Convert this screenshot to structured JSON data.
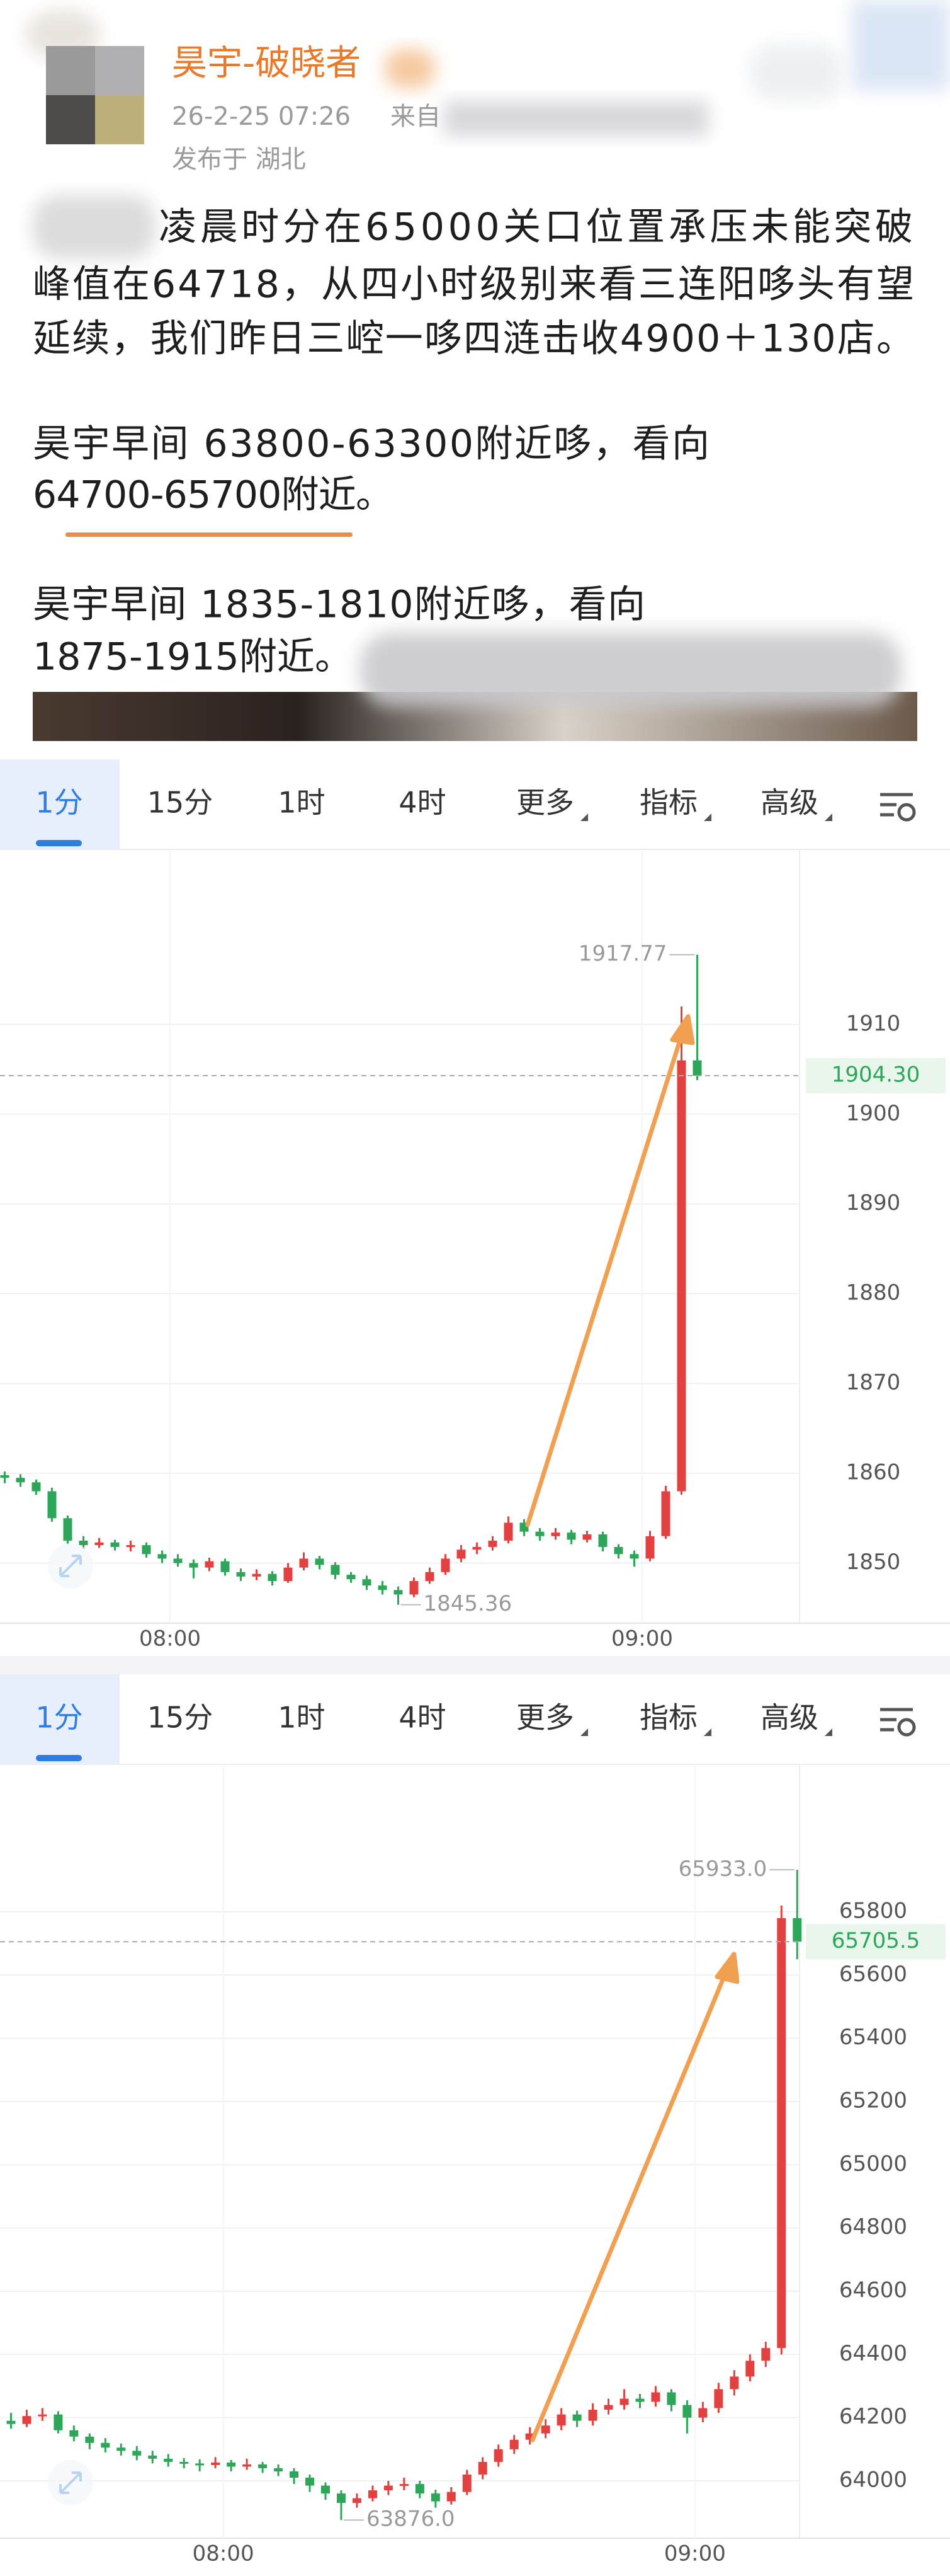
{
  "post": {
    "author": "昊宇-破晓者",
    "time": "26-2-25 07:26",
    "source": "来自",
    "location": "发布于 湖北",
    "paragraphs": [
      [
        "凌晨时分在65000关口位置承压未能突破",
        "峰值在64718，从四小时级别来看三连阳哆头有望",
        "延续，我们昨日三崆一哆四涟击收4900＋130店。"
      ],
      [
        "昊宇早间  63800-63300附近哆，看向",
        "64700-65700附近。"
      ],
      [
        "昊宇早间  1835-1810附近哆，看向",
        "1875-1915附近。"
      ]
    ]
  },
  "chart_data": [
    {
      "type": "candlestick",
      "periods": [
        "1分",
        "15分",
        "1时",
        "4时"
      ],
      "menus": [
        "更多",
        "指标",
        "高级"
      ],
      "active_period": 0,
      "colors": {
        "up": "#e3413f",
        "down": "#2ea65a"
      },
      "xlim": [
        458.4,
        560
      ],
      "xticks": [
        {
          "value": 480,
          "label": "08:00"
        },
        {
          "value": 540,
          "label": "09:00"
        }
      ],
      "ylim": [
        1843.3,
        1929.5
      ],
      "yticks": [
        1850,
        1860,
        1870,
        1880,
        1890,
        1900,
        1910
      ],
      "grid": true,
      "high_label": "1917.77",
      "low_label": "1845.36",
      "last_label": "1904.30",
      "x": [
        459,
        461,
        463,
        465,
        467,
        469,
        471,
        473,
        475,
        477,
        479,
        481,
        483,
        485,
        487,
        489,
        491,
        493,
        495,
        497,
        499,
        501,
        503,
        505,
        507,
        509,
        511,
        513,
        515,
        517,
        519,
        521,
        523,
        525,
        527,
        529,
        531,
        533,
        535,
        537,
        539,
        541,
        543,
        545,
        547
      ],
      "ohlc": [
        [
          1859.8,
          1860.2,
          1858.9,
          1859.5
        ],
        [
          1859.5,
          1859.9,
          1858.5,
          1859.0
        ],
        [
          1859.0,
          1859.3,
          1857.6,
          1858.0
        ],
        [
          1858.0,
          1858.4,
          1854.6,
          1855.0
        ],
        [
          1855.0,
          1855.3,
          1852.1,
          1852.5
        ],
        [
          1852.5,
          1853.0,
          1851.6,
          1852.0
        ],
        [
          1852.0,
          1852.8,
          1851.7,
          1852.3
        ],
        [
          1852.3,
          1852.6,
          1851.4,
          1851.8
        ],
        [
          1851.8,
          1852.5,
          1851.3,
          1852.0
        ],
        [
          1852.0,
          1852.3,
          1850.6,
          1851.0
        ],
        [
          1851.0,
          1851.4,
          1850.0,
          1850.5
        ],
        [
          1850.5,
          1851.0,
          1849.6,
          1850.0
        ],
        [
          1850.0,
          1850.4,
          1848.3,
          1849.5
        ],
        [
          1849.5,
          1850.6,
          1849.1,
          1850.2
        ],
        [
          1850.2,
          1850.5,
          1848.6,
          1849.0
        ],
        [
          1849.0,
          1849.4,
          1848.0,
          1848.5
        ],
        [
          1848.5,
          1849.3,
          1848.1,
          1848.8
        ],
        [
          1848.8,
          1849.1,
          1847.5,
          1848.0
        ],
        [
          1848.0,
          1850.0,
          1847.8,
          1849.5
        ],
        [
          1849.5,
          1851.2,
          1849.2,
          1850.5
        ],
        [
          1850.5,
          1850.8,
          1849.3,
          1849.8
        ],
        [
          1849.8,
          1850.1,
          1848.2,
          1848.7
        ],
        [
          1848.7,
          1849.0,
          1847.8,
          1848.2
        ],
        [
          1848.2,
          1848.6,
          1847.0,
          1847.5
        ],
        [
          1847.5,
          1848.0,
          1846.5,
          1847.0
        ],
        [
          1847.0,
          1847.4,
          1845.36,
          1846.5
        ],
        [
          1846.5,
          1848.4,
          1846.2,
          1848.0
        ],
        [
          1848.0,
          1849.5,
          1847.7,
          1849.0
        ],
        [
          1849.0,
          1851.0,
          1848.7,
          1850.5
        ],
        [
          1850.5,
          1852.0,
          1850.1,
          1851.5
        ],
        [
          1851.5,
          1852.3,
          1851.0,
          1851.8
        ],
        [
          1851.8,
          1853.0,
          1851.4,
          1852.5
        ],
        [
          1852.5,
          1855.2,
          1852.2,
          1854.5
        ],
        [
          1854.5,
          1854.9,
          1853.0,
          1853.5
        ],
        [
          1853.5,
          1853.9,
          1852.5,
          1853.0
        ],
        [
          1853.0,
          1853.9,
          1852.6,
          1853.4
        ],
        [
          1853.4,
          1853.7,
          1852.1,
          1852.6
        ],
        [
          1852.6,
          1853.6,
          1852.3,
          1853.2
        ],
        [
          1853.2,
          1853.5,
          1851.3,
          1851.8
        ],
        [
          1851.8,
          1852.1,
          1850.5,
          1851.0
        ],
        [
          1851.0,
          1851.4,
          1849.6,
          1850.5
        ],
        [
          1850.5,
          1853.6,
          1850.2,
          1853.0
        ],
        [
          1853.0,
          1858.6,
          1852.7,
          1858.0
        ],
        [
          1858.0,
          1912.0,
          1857.6,
          1906.0
        ],
        [
          1906.0,
          1917.77,
          1903.8,
          1904.3
        ]
      ]
    },
    {
      "type": "candlestick",
      "periods": [
        "1分",
        "15分",
        "1时",
        "4时"
      ],
      "menus": [
        "更多",
        "指标",
        "高级"
      ],
      "active_period": 0,
      "colors": {
        "up": "#e3413f",
        "down": "#2ea65a"
      },
      "xlim": [
        451.6,
        553.3
      ],
      "xticks": [
        {
          "value": 480,
          "label": "08:00"
        },
        {
          "value": 540,
          "label": "09:00"
        }
      ],
      "ylim": [
        63818.6,
        66266.4
      ],
      "yticks": [
        64000,
        64200,
        64400,
        64600,
        64800,
        65000,
        65200,
        65400,
        65600,
        65800
      ],
      "grid": true,
      "high_label": "65933.0",
      "low_label": "63876.0",
      "last_label": "65705.5",
      "x": [
        453,
        455,
        457,
        459,
        461,
        463,
        465,
        467,
        469,
        471,
        473,
        475,
        477,
        479,
        481,
        483,
        485,
        487,
        489,
        491,
        493,
        495,
        497,
        499,
        501,
        503,
        505,
        507,
        509,
        511,
        513,
        515,
        517,
        519,
        521,
        523,
        525,
        527,
        529,
        531,
        533,
        535,
        537,
        539,
        541,
        543,
        545,
        547,
        549,
        551,
        553
      ],
      "ohlc": [
        [
          64190,
          64215,
          64165,
          64180
        ],
        [
          64180,
          64225,
          64170,
          64205
        ],
        [
          64205,
          64230,
          64190,
          64210
        ],
        [
          64210,
          64220,
          64150,
          64160
        ],
        [
          64160,
          64175,
          64125,
          64140
        ],
        [
          64140,
          64150,
          64100,
          64120
        ],
        [
          64120,
          64135,
          64090,
          64105
        ],
        [
          64105,
          64118,
          64080,
          64095
        ],
        [
          64095,
          64110,
          64065,
          64080
        ],
        [
          64080,
          64095,
          64055,
          64070
        ],
        [
          64070,
          64085,
          64045,
          64060
        ],
        [
          64060,
          64072,
          64040,
          64055
        ],
        [
          64055,
          64068,
          64030,
          64050
        ],
        [
          64050,
          64075,
          64040,
          64058
        ],
        [
          64058,
          64066,
          64030,
          64045
        ],
        [
          64045,
          64070,
          64035,
          64052
        ],
        [
          64052,
          64060,
          64025,
          64040
        ],
        [
          64040,
          64052,
          64015,
          64030
        ],
        [
          64030,
          64040,
          63990,
          64010
        ],
        [
          64010,
          64020,
          63965,
          63985
        ],
        [
          63985,
          63995,
          63940,
          63960
        ],
        [
          63960,
          63970,
          63876,
          63930
        ],
        [
          63930,
          63960,
          63915,
          63945
        ],
        [
          63945,
          63985,
          63935,
          63970
        ],
        [
          63970,
          64000,
          63955,
          63985
        ],
        [
          63985,
          64010,
          63970,
          63990
        ],
        [
          63990,
          64000,
          63945,
          63960
        ],
        [
          63960,
          63972,
          63915,
          63935
        ],
        [
          63935,
          63980,
          63925,
          63965
        ],
        [
          63965,
          64035,
          63955,
          64020
        ],
        [
          64020,
          64075,
          64005,
          64060
        ],
        [
          64060,
          64115,
          64045,
          64100
        ],
        [
          64100,
          64145,
          64085,
          64130
        ],
        [
          64130,
          64170,
          64115,
          64150
        ],
        [
          64150,
          64195,
          64135,
          64175
        ],
        [
          64175,
          64230,
          64160,
          64210
        ],
        [
          64210,
          64222,
          64170,
          64190
        ],
        [
          64190,
          64245,
          64175,
          64225
        ],
        [
          64225,
          64260,
          64210,
          64240
        ],
        [
          64240,
          64290,
          64225,
          64260
        ],
        [
          64260,
          64275,
          64230,
          64250
        ],
        [
          64250,
          64300,
          64235,
          64280
        ],
        [
          64280,
          64290,
          64220,
          64240
        ],
        [
          64240,
          64255,
          64150,
          64200
        ],
        [
          64200,
          64250,
          64185,
          64230
        ],
        [
          64230,
          64310,
          64215,
          64290
        ],
        [
          64290,
          64350,
          64270,
          64330
        ],
        [
          64330,
          64400,
          64315,
          64380
        ],
        [
          64380,
          64440,
          64360,
          64420
        ],
        [
          64420,
          65820,
          64400,
          65780
        ],
        [
          65780,
          65933,
          65650,
          65705.5
        ]
      ]
    }
  ]
}
